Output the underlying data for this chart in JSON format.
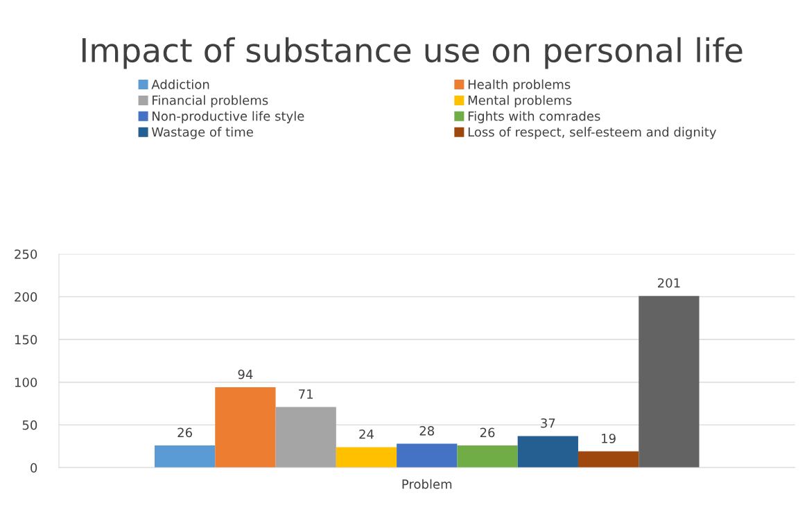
{
  "chart_data": {
    "type": "bar",
    "title": "Impact of substance use on personal life",
    "categories": [
      "Problem"
    ],
    "series": [
      {
        "name": "Addiction",
        "color": "#5b9bd5",
        "values": [
          26
        ]
      },
      {
        "name": "Health problems",
        "color": "#ed7d31",
        "values": [
          94
        ]
      },
      {
        "name": "Financial problems",
        "color": "#a5a5a5",
        "values": [
          71
        ]
      },
      {
        "name": "Mental problems",
        "color": "#ffc000",
        "values": [
          24
        ]
      },
      {
        "name": "Non-productive life style",
        "color": "#4472c4",
        "values": [
          28
        ]
      },
      {
        "name": "Fights with comrades",
        "color": "#70ad47",
        "values": [
          26
        ]
      },
      {
        "name": "Wastage of time",
        "color": "#255e91",
        "values": [
          37
        ]
      },
      {
        "name": "Loss of respect, self-esteem and dignity",
        "color": "#9e480e",
        "values": [
          19
        ]
      },
      {
        "color": "#636363",
        "values": [
          201
        ]
      }
    ],
    "ylim": [
      0,
      250
    ],
    "yticks": [
      0,
      50,
      100,
      150,
      200,
      250
    ],
    "grid": "y",
    "legend": "top",
    "data_labels": true
  }
}
